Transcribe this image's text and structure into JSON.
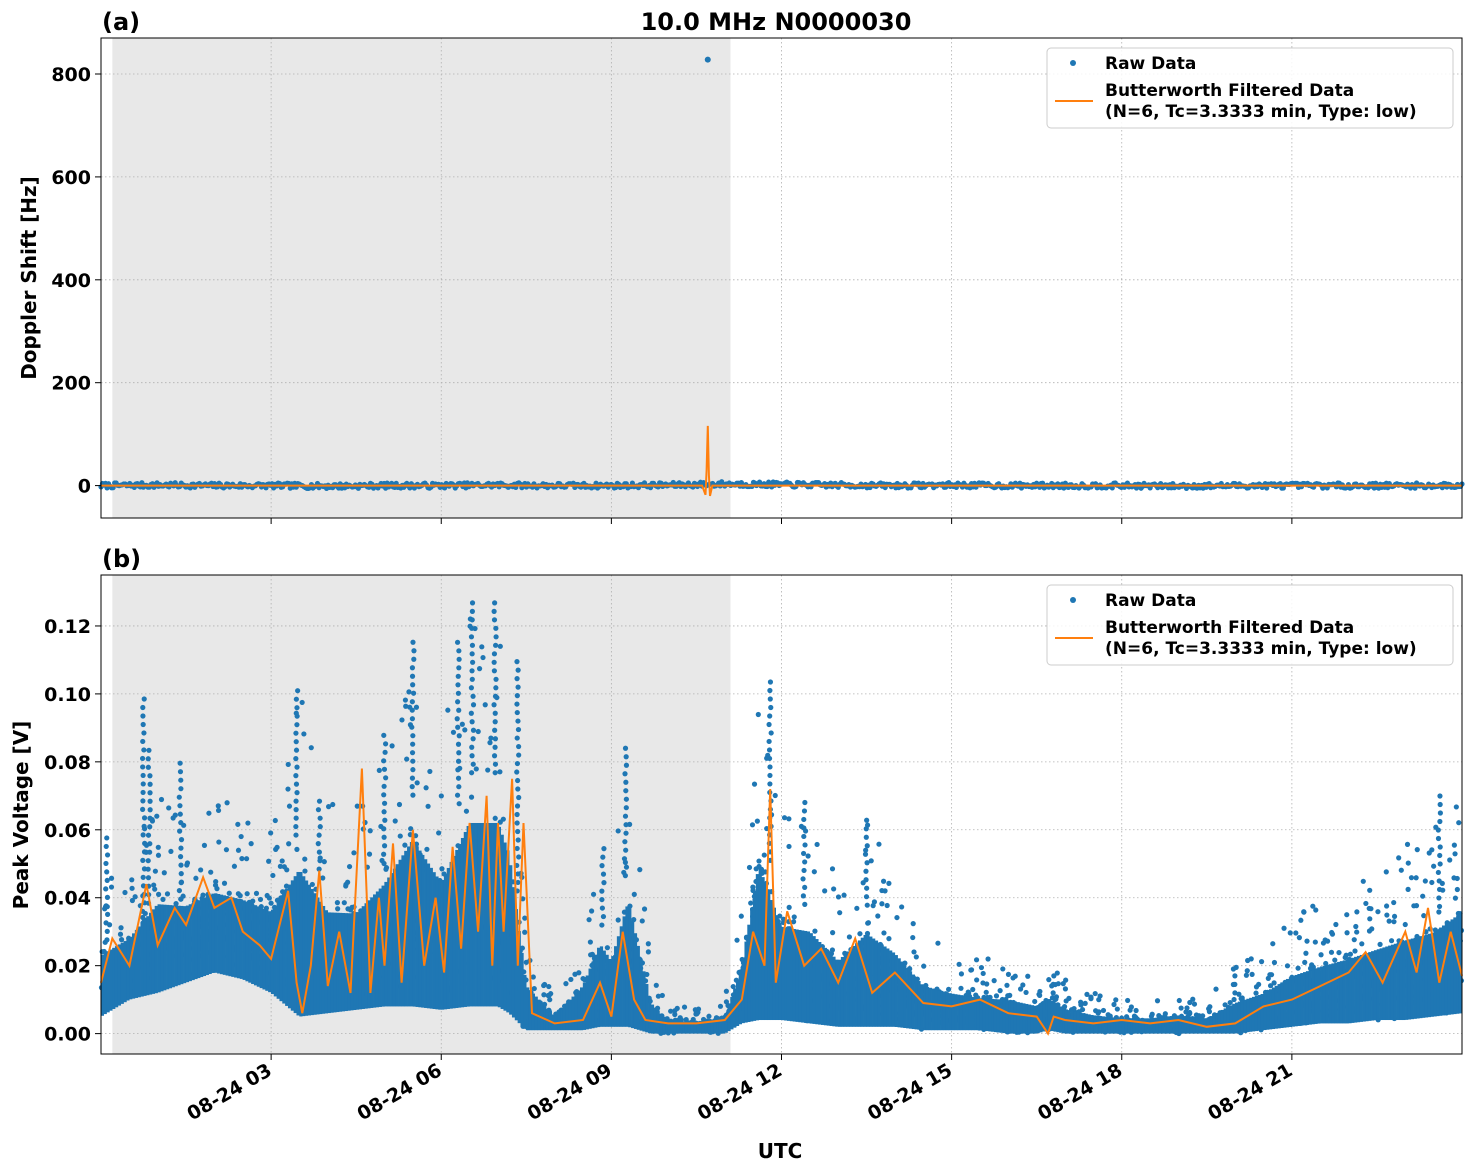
{
  "figure": {
    "title": "10.0 MHz N0000030",
    "xlabel": "UTC",
    "x_tick_labels": [
      "08-24 03",
      "08-24 06",
      "08-24 09",
      "08-24 12",
      "08-24 15",
      "08-24 18",
      "08-24 21"
    ],
    "night_shading": {
      "start_hour": 0.2,
      "end_hour": 11.1,
      "color": "#e8e8e8"
    }
  },
  "chart_data": [
    {
      "panel": "(a)",
      "type": "scatter",
      "ylabel": "Doppler Shift [Hz]",
      "ylim": [
        -63,
        870
      ],
      "yticks": [
        0,
        200,
        400,
        600,
        800
      ],
      "xlim_hours": [
        0,
        24
      ],
      "grid": true,
      "legend_position": "top-right",
      "series": [
        {
          "name": "Raw Data",
          "color": "#1f77b4",
          "style": "points",
          "x": [
            0,
            1,
            2,
            3,
            4,
            5,
            6,
            7,
            8,
            9,
            10,
            10.5,
            10.7,
            11,
            12,
            13,
            14,
            15,
            16,
            17,
            18,
            19,
            20,
            21,
            22,
            23,
            24
          ],
          "y": [
            0,
            1,
            0,
            0,
            -1,
            0,
            0,
            1,
            0,
            0,
            1,
            2,
            828,
            3,
            2,
            1,
            0,
            1,
            0,
            0,
            0,
            -1,
            0,
            0,
            0,
            0,
            0
          ]
        },
        {
          "name": "Butterworth Filtered Data\n(N=6, Tc=3.3333 min, Type: low)",
          "color": "#ff7f0e",
          "style": "line",
          "x": [
            0,
            10.6,
            10.66,
            10.68,
            10.7,
            10.72,
            10.74,
            10.78,
            24
          ],
          "y": [
            0,
            0,
            -18,
            30,
            116,
            20,
            -20,
            0,
            0
          ]
        }
      ]
    },
    {
      "panel": "(b)",
      "type": "scatter",
      "ylabel": "Peak Voltage [V]",
      "ylim": [
        -0.006,
        0.135
      ],
      "yticks": [
        0.0,
        0.02,
        0.04,
        0.06,
        0.08,
        0.1,
        0.12
      ],
      "xlim_hours": [
        0,
        24
      ],
      "grid": true,
      "legend_position": "top-right",
      "series": [
        {
          "name": "Raw Data",
          "color": "#1f77b4",
          "style": "band",
          "x": [
            0,
            0.5,
            1,
            1.5,
            2,
            2.5,
            3,
            3.5,
            4,
            4.5,
            5,
            5.5,
            6,
            6.5,
            7,
            7.2,
            7.5,
            8,
            8.5,
            8.8,
            9,
            9.3,
            9.7,
            10,
            10.5,
            11,
            11.3,
            11.6,
            12,
            12.5,
            13,
            13.5,
            14,
            14.5,
            15,
            15.5,
            16,
            16.5,
            16.7,
            17,
            17.5,
            18,
            18.5,
            19,
            19.5,
            20,
            20.5,
            21,
            21.5,
            22,
            22.5,
            23,
            23.5,
            24
          ],
          "y_low": [
            0.005,
            0.01,
            0.012,
            0.015,
            0.018,
            0.016,
            0.012,
            0.005,
            0.006,
            0.007,
            0.008,
            0.008,
            0.007,
            0.008,
            0.008,
            0.006,
            0.001,
            0.001,
            0.001,
            0.002,
            0.002,
            0.002,
            0.0,
            0.0,
            0.0,
            0.0,
            0.003,
            0.004,
            0.004,
            0.003,
            0.002,
            0.002,
            0.002,
            0.001,
            0.001,
            0.001,
            0.0,
            0.0,
            0.001,
            0.0,
            0.0,
            0.0,
            0.0,
            0.0,
            0.0,
            0.0,
            0.001,
            0.002,
            0.003,
            0.003,
            0.004,
            0.004,
            0.005,
            0.006
          ],
          "y_high": [
            0.045,
            0.05,
            0.07,
            0.065,
            0.07,
            0.068,
            0.065,
            0.101,
            0.072,
            0.07,
            0.088,
            0.117,
            0.09,
            0.128,
            0.128,
            0.11,
            0.03,
            0.01,
            0.03,
            0.056,
            0.045,
            0.084,
            0.02,
            0.008,
            0.008,
            0.01,
            0.04,
            0.105,
            0.065,
            0.063,
            0.045,
            0.063,
            0.05,
            0.03,
            0.025,
            0.022,
            0.022,
            0.018,
            0.022,
            0.016,
            0.012,
            0.01,
            0.01,
            0.012,
            0.01,
            0.02,
            0.025,
            0.035,
            0.04,
            0.045,
            0.05,
            0.056,
            0.06,
            0.072
          ],
          "spikes": [
            [
              0.1,
              0.06
            ],
            [
              0.75,
              0.099
            ],
            [
              0.85,
              0.084
            ],
            [
              1.4,
              0.08
            ],
            [
              3.45,
              0.101
            ],
            [
              3.85,
              0.07
            ],
            [
              5.0,
              0.089
            ],
            [
              5.5,
              0.117
            ],
            [
              6.3,
              0.116
            ],
            [
              6.55,
              0.128
            ],
            [
              6.95,
              0.128
            ],
            [
              7.35,
              0.11
            ],
            [
              8.85,
              0.056
            ],
            [
              9.25,
              0.084
            ],
            [
              11.8,
              0.105
            ],
            [
              12.4,
              0.069
            ],
            [
              13.5,
              0.063
            ],
            [
              16.8,
              0.017
            ],
            [
              20.0,
              0.021
            ],
            [
              23.6,
              0.072
            ]
          ]
        },
        {
          "name": "Butterworth Filtered Data\n(N=6, Tc=3.3333 min, Type: low)",
          "color": "#ff7f0e",
          "style": "line",
          "x": [
            0,
            0.2,
            0.5,
            0.8,
            1.0,
            1.3,
            1.5,
            1.8,
            2.0,
            2.3,
            2.5,
            2.8,
            3.0,
            3.3,
            3.45,
            3.55,
            3.7,
            3.85,
            4.0,
            4.2,
            4.4,
            4.6,
            4.75,
            4.9,
            5.0,
            5.15,
            5.3,
            5.5,
            5.7,
            5.9,
            6.05,
            6.2,
            6.35,
            6.5,
            6.65,
            6.8,
            6.9,
            7.0,
            7.1,
            7.25,
            7.35,
            7.45,
            7.6,
            8.0,
            8.5,
            8.8,
            9.0,
            9.2,
            9.4,
            9.6,
            10.0,
            10.5,
            11.0,
            11.3,
            11.5,
            11.7,
            11.8,
            11.9,
            12.1,
            12.4,
            12.7,
            13.0,
            13.3,
            13.6,
            14.0,
            14.5,
            15.0,
            15.5,
            16.0,
            16.5,
            16.7,
            16.8,
            17.0,
            17.5,
            18.0,
            18.5,
            19.0,
            19.5,
            20.0,
            20.5,
            21.0,
            21.5,
            22.0,
            22.3,
            22.6,
            23.0,
            23.2,
            23.4,
            23.6,
            23.8,
            24.0
          ],
          "y": [
            0.015,
            0.028,
            0.02,
            0.044,
            0.026,
            0.037,
            0.032,
            0.046,
            0.037,
            0.04,
            0.03,
            0.026,
            0.022,
            0.042,
            0.015,
            0.006,
            0.02,
            0.048,
            0.014,
            0.03,
            0.012,
            0.078,
            0.012,
            0.04,
            0.02,
            0.056,
            0.015,
            0.06,
            0.02,
            0.04,
            0.018,
            0.055,
            0.025,
            0.062,
            0.03,
            0.07,
            0.02,
            0.062,
            0.03,
            0.075,
            0.02,
            0.062,
            0.006,
            0.003,
            0.004,
            0.015,
            0.005,
            0.03,
            0.01,
            0.004,
            0.003,
            0.003,
            0.004,
            0.01,
            0.03,
            0.02,
            0.072,
            0.015,
            0.036,
            0.02,
            0.025,
            0.015,
            0.028,
            0.012,
            0.018,
            0.009,
            0.008,
            0.01,
            0.006,
            0.005,
            0.0,
            0.005,
            0.004,
            0.003,
            0.004,
            0.003,
            0.004,
            0.002,
            0.003,
            0.008,
            0.01,
            0.014,
            0.018,
            0.024,
            0.015,
            0.03,
            0.018,
            0.037,
            0.015,
            0.03,
            0.017
          ]
        }
      ]
    }
  ]
}
